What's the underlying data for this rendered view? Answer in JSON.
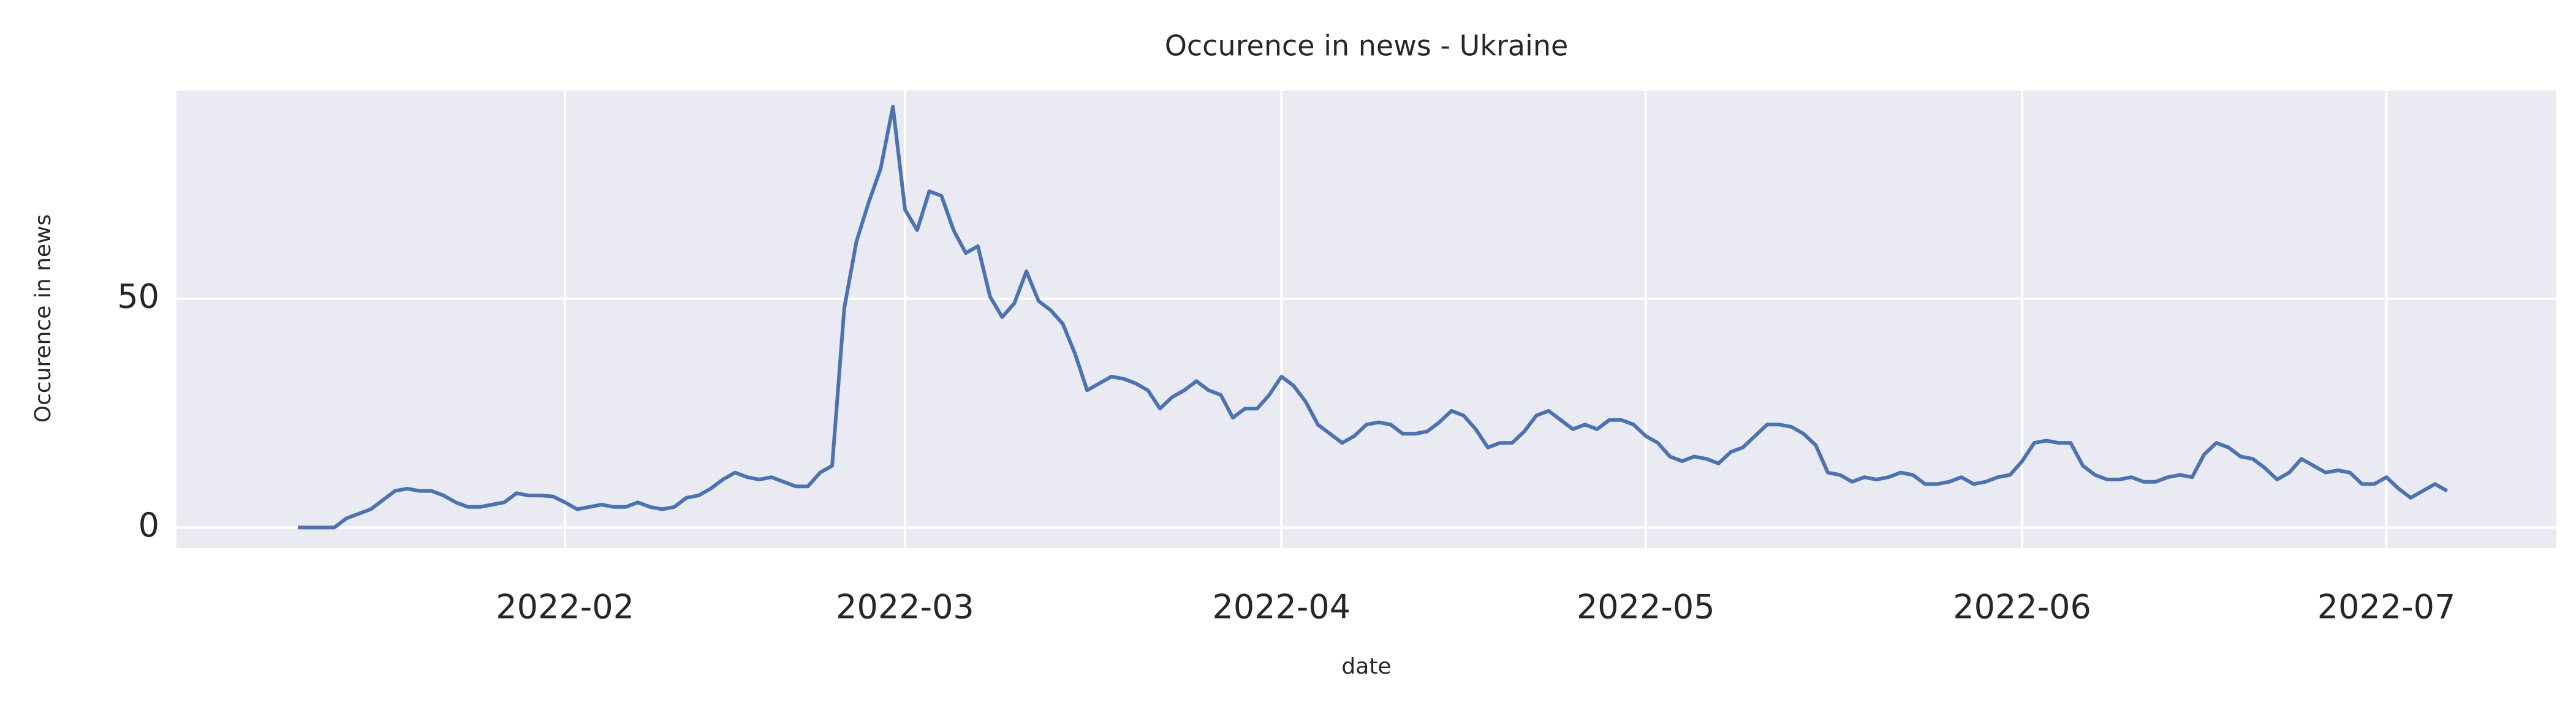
{
  "chart_data": {
    "type": "line",
    "title": "Occurence in news - Ukraine",
    "x_label": "date",
    "y_label": "Occurence in news",
    "x": [
      "2022-01-10",
      "2022-01-11",
      "2022-01-12",
      "2022-01-13",
      "2022-01-14",
      "2022-01-15",
      "2022-01-16",
      "2022-01-17",
      "2022-01-18",
      "2022-01-19",
      "2022-01-20",
      "2022-01-21",
      "2022-01-22",
      "2022-01-23",
      "2022-01-24",
      "2022-01-25",
      "2022-01-26",
      "2022-01-27",
      "2022-01-28",
      "2022-01-29",
      "2022-01-30",
      "2022-01-31",
      "2022-02-01",
      "2022-02-02",
      "2022-02-03",
      "2022-02-04",
      "2022-02-05",
      "2022-02-06",
      "2022-02-07",
      "2022-02-08",
      "2022-02-09",
      "2022-02-10",
      "2022-02-11",
      "2022-02-12",
      "2022-02-13",
      "2022-02-14",
      "2022-02-15",
      "2022-02-16",
      "2022-02-17",
      "2022-02-18",
      "2022-02-19",
      "2022-02-20",
      "2022-02-21",
      "2022-02-22",
      "2022-02-23",
      "2022-02-24",
      "2022-02-25",
      "2022-02-26",
      "2022-02-27",
      "2022-02-28",
      "2022-03-01",
      "2022-03-02",
      "2022-03-03",
      "2022-03-04",
      "2022-03-05",
      "2022-03-06",
      "2022-03-07",
      "2022-03-08",
      "2022-03-09",
      "2022-03-10",
      "2022-03-11",
      "2022-03-12",
      "2022-03-13",
      "2022-03-14",
      "2022-03-15",
      "2022-03-16",
      "2022-03-17",
      "2022-03-18",
      "2022-03-19",
      "2022-03-20",
      "2022-03-21",
      "2022-03-22",
      "2022-03-23",
      "2022-03-24",
      "2022-03-25",
      "2022-03-26",
      "2022-03-27",
      "2022-03-28",
      "2022-03-29",
      "2022-03-30",
      "2022-03-31",
      "2022-04-01",
      "2022-04-02",
      "2022-04-03",
      "2022-04-04",
      "2022-04-05",
      "2022-04-06",
      "2022-04-07",
      "2022-04-08",
      "2022-04-09",
      "2022-04-10",
      "2022-04-11",
      "2022-04-12",
      "2022-04-13",
      "2022-04-14",
      "2022-04-15",
      "2022-04-16",
      "2022-04-17",
      "2022-04-18",
      "2022-04-19",
      "2022-04-20",
      "2022-04-21",
      "2022-04-22",
      "2022-04-23",
      "2022-04-24",
      "2022-04-25",
      "2022-04-26",
      "2022-04-27",
      "2022-04-28",
      "2022-04-29",
      "2022-04-30",
      "2022-05-01",
      "2022-05-02",
      "2022-05-03",
      "2022-05-04",
      "2022-05-05",
      "2022-05-06",
      "2022-05-07",
      "2022-05-08",
      "2022-05-09",
      "2022-05-10",
      "2022-05-11",
      "2022-05-12",
      "2022-05-13",
      "2022-05-14",
      "2022-05-15",
      "2022-05-16",
      "2022-05-17",
      "2022-05-18",
      "2022-05-19",
      "2022-05-20",
      "2022-05-21",
      "2022-05-22",
      "2022-05-23",
      "2022-05-24",
      "2022-05-25",
      "2022-05-26",
      "2022-05-27",
      "2022-05-28",
      "2022-05-29",
      "2022-05-30",
      "2022-05-31",
      "2022-06-01",
      "2022-06-02",
      "2022-06-03",
      "2022-06-04",
      "2022-06-05",
      "2022-06-06",
      "2022-06-07",
      "2022-06-08",
      "2022-06-09",
      "2022-06-10",
      "2022-06-11",
      "2022-06-12",
      "2022-06-13",
      "2022-06-14",
      "2022-06-15",
      "2022-06-16",
      "2022-06-17",
      "2022-06-18",
      "2022-06-19",
      "2022-06-20",
      "2022-06-21",
      "2022-06-22",
      "2022-06-23",
      "2022-06-24",
      "2022-06-25",
      "2022-06-26",
      "2022-06-27",
      "2022-06-28",
      "2022-06-29",
      "2022-06-30",
      "2022-07-01",
      "2022-07-02",
      "2022-07-03",
      "2022-07-04",
      "2022-07-05",
      "2022-07-06"
    ],
    "series": [
      {
        "color": "#4c72b0",
        "values": [
          0,
          0,
          0,
          0,
          2,
          3,
          4,
          6,
          8,
          8.5,
          8,
          8,
          7,
          5.5,
          4.5,
          4.5,
          5,
          5.5,
          7.5,
          7,
          7,
          6.8,
          5.5,
          4,
          4.5,
          5,
          4.5,
          4.5,
          5.5,
          4.5,
          4,
          4.5,
          6.5,
          7,
          8.5,
          10.5,
          12,
          11,
          10.5,
          11,
          10,
          9,
          9,
          12,
          13.5,
          48,
          62.5,
          71,
          78.5,
          92,
          69.5,
          65,
          73.5,
          72.5,
          65,
          60,
          61.5,
          50.5,
          46,
          49,
          56,
          49.5,
          47.5,
          44.5,
          38,
          30,
          31.5,
          33,
          32.5,
          31.5,
          30,
          26,
          28.5,
          30,
          32,
          30,
          29,
          24,
          26,
          26,
          29,
          33,
          31,
          27.5,
          22.5,
          20.5,
          18.5,
          20,
          22.5,
          23,
          22.5,
          20.5,
          20.5,
          21,
          23,
          25.5,
          24.5,
          21.5,
          17.5,
          18.5,
          18.5,
          21,
          24.5,
          25.5,
          23.5,
          21.5,
          22.5,
          21.5,
          23.5,
          23.5,
          22.5,
          20,
          18.5,
          15.5,
          14.5,
          15.5,
          15,
          14,
          16.5,
          17.5,
          20,
          22.5,
          22.5,
          22,
          20.5,
          18,
          12,
          11.5,
          10,
          11,
          10.5,
          11,
          12,
          11.5,
          9.5,
          9.5,
          10,
          11,
          9.5,
          10,
          11,
          11.5,
          14.5,
          18.5,
          19,
          18.5,
          18.5,
          13.5,
          11.5,
          10.5,
          10.5,
          11,
          10,
          10,
          11,
          11.5,
          11,
          16,
          18.5,
          17.5,
          15.5,
          15,
          13,
          10.5,
          12,
          15,
          13.5,
          12,
          12.5,
          12,
          9.5,
          9.5,
          11,
          8.5,
          6.5,
          8,
          9.5,
          8
        ]
      }
    ],
    "xlim": [
      "2021-12-31",
      "2022-07-15"
    ],
    "xticks": [
      {
        "value": "2022-02-01",
        "label": "2022-02"
      },
      {
        "value": "2022-03-01",
        "label": "2022-03"
      },
      {
        "value": "2022-04-01",
        "label": "2022-04"
      },
      {
        "value": "2022-05-01",
        "label": "2022-05"
      },
      {
        "value": "2022-06-01",
        "label": "2022-06"
      },
      {
        "value": "2022-07-01",
        "label": "2022-07"
      }
    ],
    "ylim": [
      -4.5,
      95.5
    ],
    "yticks": [
      0,
      50
    ],
    "grid": true,
    "background": "#eaeaf2"
  }
}
